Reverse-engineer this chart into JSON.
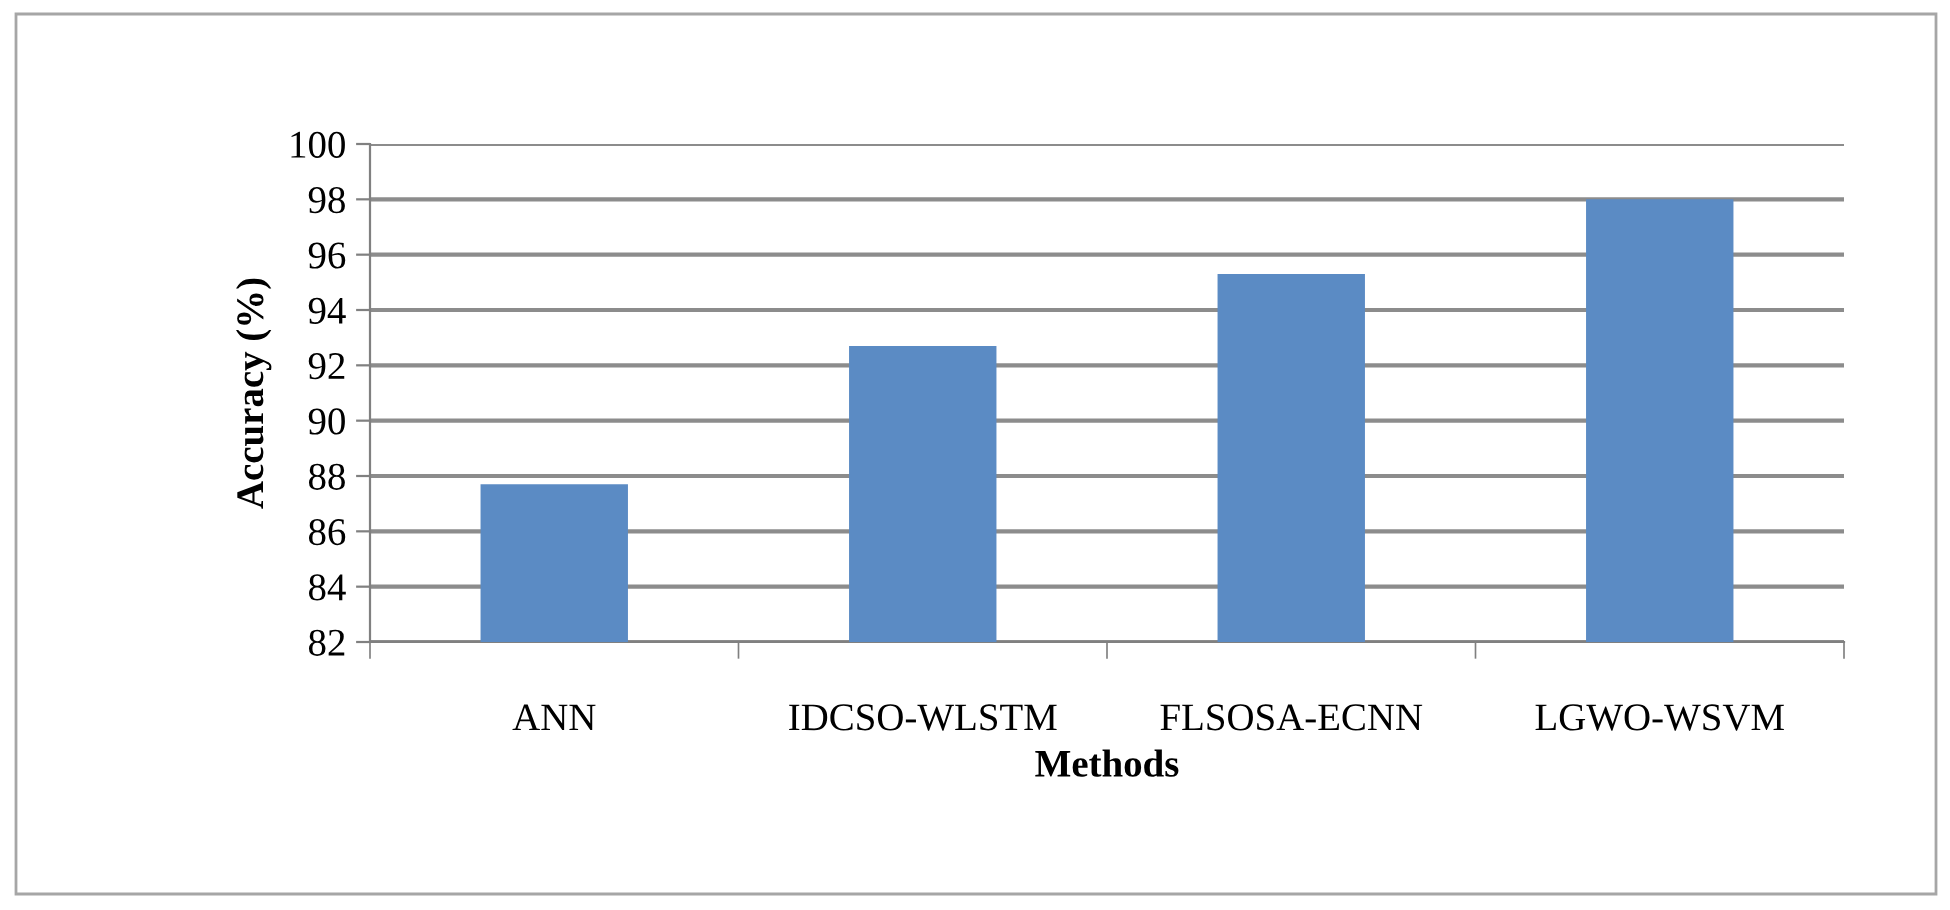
{
  "chart_data": {
    "type": "bar",
    "xlabel": "Methods",
    "ylabel": "Accuracy (%)",
    "categories": [
      "ANN",
      "IDCSO-WLSTM",
      "FLSOSA-ECNN",
      "LGWO-WSVM"
    ],
    "values": [
      87.7,
      92.7,
      95.3,
      98.0
    ],
    "color": "#5b8bc4",
    "ylim": [
      82,
      100
    ],
    "yticks": [
      82,
      84,
      86,
      88,
      90,
      92,
      94,
      96,
      98,
      100
    ],
    "grid": "y",
    "legend": false
  }
}
